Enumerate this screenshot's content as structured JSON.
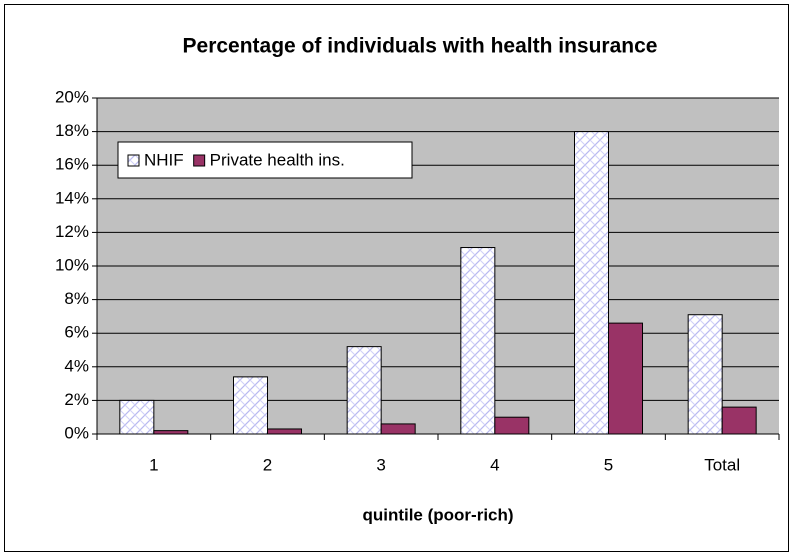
{
  "chart_data": {
    "type": "bar",
    "title": "Percentage of individuals with health insurance",
    "x_label": "quintile (poor-rich)",
    "categories": [
      "1",
      "2",
      "3",
      "4",
      "5",
      "Total"
    ],
    "series": [
      {
        "name": "NHIF",
        "color": "#9999ff",
        "values": [
          2.0,
          3.4,
          5.2,
          11.1,
          18.0,
          7.1
        ]
      },
      {
        "name": "Private health ins.",
        "color": "#993366",
        "values": [
          0.2,
          0.3,
          0.6,
          1.0,
          6.6,
          1.6
        ]
      }
    ],
    "ylim": [
      0,
      20
    ],
    "yticks": [
      {
        "value": 0,
        "label": "0%"
      },
      {
        "value": 2,
        "label": "2%"
      },
      {
        "value": 4,
        "label": "4%"
      },
      {
        "value": 6,
        "label": "6%"
      },
      {
        "value": 8,
        "label": "8%"
      },
      {
        "value": 10,
        "label": "10%"
      },
      {
        "value": 12,
        "label": "12%"
      },
      {
        "value": 14,
        "label": "14%"
      },
      {
        "value": 16,
        "label": "16%"
      },
      {
        "value": 18,
        "label": "18%"
      },
      {
        "value": 20,
        "label": "20%"
      }
    ],
    "grid": true,
    "legend": "top-left",
    "plot_background": "#c0c0c0"
  }
}
